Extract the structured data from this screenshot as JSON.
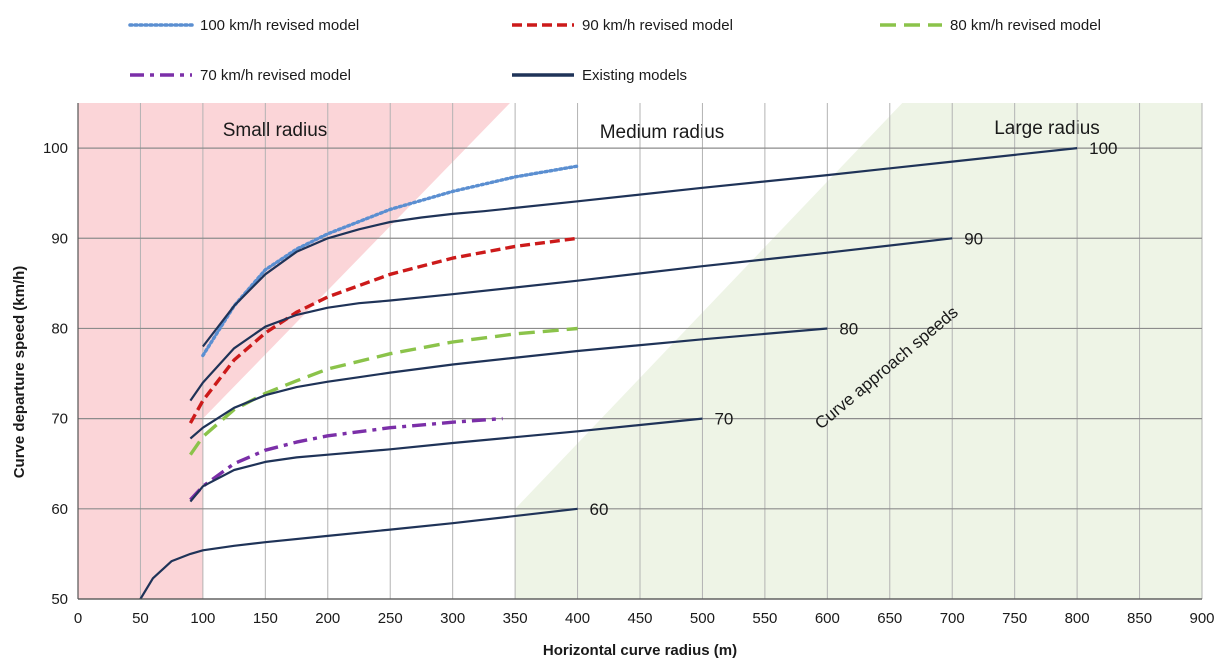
{
  "chart_data": {
    "type": "line",
    "xlabel": "Horizontal curve radius (m)",
    "ylabel": "Curve departure speed (km/h)",
    "xlim": [
      0,
      900
    ],
    "ylim": [
      50,
      105
    ],
    "x_ticks": [
      0,
      50,
      100,
      150,
      200,
      250,
      300,
      350,
      400,
      450,
      500,
      550,
      600,
      650,
      700,
      750,
      800,
      850,
      900
    ],
    "y_ticks": [
      50,
      60,
      70,
      80,
      90,
      100
    ],
    "grid": true,
    "legend_position": "top",
    "regions": [
      {
        "label": "Small radius",
        "color": "#fbd5d8"
      },
      {
        "label": "Medium radius",
        "color": "#ffffff"
      },
      {
        "label": "Large radius",
        "color": "#eef4e6"
      }
    ],
    "annotation": "Curve approach speeds",
    "series": [
      {
        "name": "100 km/h revised model",
        "style": "dotted",
        "color": "#5b8fd1",
        "x": [
          100,
          125,
          150,
          175,
          200,
          250,
          300,
          350,
          400
        ],
        "y": [
          77,
          82.5,
          86.5,
          88.8,
          90.5,
          93.2,
          95.2,
          96.8,
          98
        ]
      },
      {
        "name": "90 km/h revised model",
        "style": "dashed",
        "color": "#cc1a1a",
        "x": [
          90,
          100,
          125,
          150,
          175,
          200,
          250,
          300,
          350,
          400
        ],
        "y": [
          69.5,
          72,
          76.5,
          79.5,
          81.8,
          83.5,
          86,
          87.8,
          89.1,
          90
        ]
      },
      {
        "name": "80 km/h revised model",
        "style": "long-dash",
        "color": "#8bc34a",
        "x": [
          90,
          100,
          125,
          150,
          175,
          200,
          250,
          300,
          350,
          400
        ],
        "y": [
          66,
          68,
          71,
          72.8,
          74.2,
          75.5,
          77.2,
          78.5,
          79.4,
          80
        ]
      },
      {
        "name": "70 km/h revised model",
        "style": "dash-dot",
        "color": "#7b2fa8",
        "x": [
          90,
          100,
          125,
          150,
          175,
          200,
          250,
          300,
          340
        ],
        "y": [
          61,
          62.5,
          65,
          66.5,
          67.4,
          68.1,
          69,
          69.6,
          70
        ]
      },
      {
        "name": "Existing models",
        "style": "solid",
        "color": "#1f3358",
        "label_value": "100",
        "x": [
          100,
          125,
          150,
          175,
          200,
          225,
          250,
          275,
          300,
          325,
          400,
          500,
          600,
          700,
          800
        ],
        "y": [
          78,
          82.5,
          86,
          88.5,
          90,
          91,
          91.8,
          92.3,
          92.7,
          93,
          94.1,
          95.6,
          97,
          98.5,
          100
        ]
      },
      {
        "name": "Existing models",
        "style": "solid",
        "color": "#1f3358",
        "label_value": "90",
        "x": [
          90,
          100,
          125,
          150,
          175,
          200,
          225,
          250,
          300,
          400,
          500,
          600,
          700
        ],
        "y": [
          72,
          74,
          77.8,
          80.2,
          81.5,
          82.3,
          82.8,
          83.1,
          83.8,
          85.3,
          86.9,
          88.4,
          90
        ]
      },
      {
        "name": "Existing models",
        "style": "solid",
        "color": "#1f3358",
        "label_value": "80",
        "x": [
          90,
          100,
          125,
          150,
          175,
          200,
          225,
          250,
          300,
          400,
          500,
          600
        ],
        "y": [
          67.8,
          69,
          71.2,
          72.6,
          73.5,
          74.1,
          74.6,
          75.1,
          76,
          77.5,
          78.8,
          80
        ]
      },
      {
        "name": "Existing models",
        "style": "solid",
        "color": "#1f3358",
        "label_value": "70",
        "x": [
          90,
          100,
          125,
          150,
          175,
          200,
          250,
          300,
          400,
          500
        ],
        "y": [
          60.8,
          62.5,
          64.3,
          65.2,
          65.7,
          66,
          66.6,
          67.3,
          68.6,
          70
        ]
      },
      {
        "name": "Existing models",
        "style": "solid",
        "color": "#1f3358",
        "label_value": "60",
        "x": [
          50,
          60,
          75,
          90,
          100,
          125,
          150,
          200,
          250,
          300,
          400
        ],
        "y": [
          50,
          52.3,
          54.2,
          55,
          55.4,
          55.9,
          56.3,
          57,
          57.7,
          58.4,
          60
        ]
      }
    ]
  },
  "legend": [
    {
      "label": "100 km/h revised model",
      "style": "dotted",
      "color": "#5b8fd1"
    },
    {
      "label": "90 km/h revised model",
      "style": "dashed",
      "color": "#cc1a1a"
    },
    {
      "label": "80 km/h revised model",
      "style": "long-dash",
      "color": "#8bc34a"
    },
    {
      "label": "70 km/h revised model",
      "style": "dash-dot",
      "color": "#7b2fa8"
    },
    {
      "label": "Existing models",
      "style": "solid",
      "color": "#1f3358"
    }
  ]
}
